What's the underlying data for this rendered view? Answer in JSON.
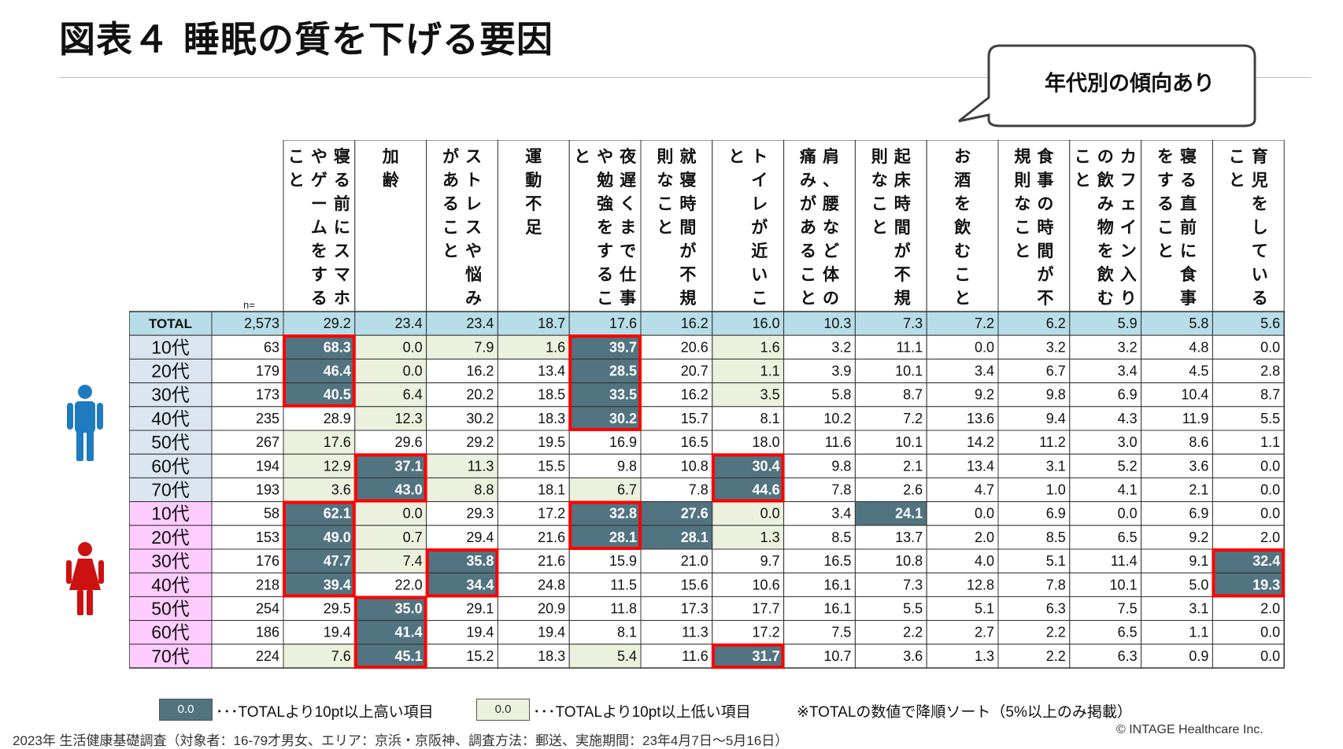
{
  "title": "図表４ 睡眠の質を下げる要因",
  "callout": "年代別の傾向あり",
  "colors": {
    "high_fill": "#527380",
    "low_fill": "#ebf1dd",
    "total_row": "#b7dde8",
    "male_label": "#dce6f1",
    "female_label": "#ffccff",
    "highlight_border": "#ff0000",
    "male_icon": "#1f7bbf",
    "female_icon": "#cc1111"
  },
  "legend": {
    "high_sample": "0.0",
    "high_text": "･･･TOTALより10pt以上高い項目",
    "low_sample": "0.0",
    "low_text": "･･･TOTALより10pt以上低い項目",
    "sort_note": "※TOTALの数値で降順ソート（5%以上のみ掲載）"
  },
  "source": "2023年 生活健康基礎調査（対象者：16-79才男女、エリア：京浜・京阪神、調査方法：郵送、実施期間：23年4月7日～5月16日）",
  "copyright": "© INTAGE Healthcare Inc.",
  "chart_data": {
    "type": "table",
    "n_label": "n=",
    "columns": [
      "寝る前にスマホやゲームをすること",
      "加齢",
      "ストレスや悩みがあること",
      "運動不足",
      "夜遅くまで仕事や勉強をすること",
      "就寝時間が不規則なこと",
      "トイレが近いこと",
      "肩、腰など体の痛みがあること",
      "起床時間が不規則なこと",
      "お酒を飲むこと",
      "食事の時間が不規則なこと",
      "カフェイン入りの飲み物を飲むこと",
      "寝る直前に食事をすること",
      "育児をしていること"
    ],
    "header_lines": [
      [
        "寝る前にスマホ",
        "やゲームをする",
        "こと"
      ],
      [
        "加齢"
      ],
      [
        "ストレスや悩み",
        "があること"
      ],
      [
        "運動不足"
      ],
      [
        "夜遅くまで仕事",
        "や勉強をするこ",
        "と"
      ],
      [
        "就寝時間が不規",
        "則なこと"
      ],
      [
        "トイレが近いこ",
        "と"
      ],
      [
        "肩、腰など体の",
        "痛みがあること"
      ],
      [
        "起床時間が不規",
        "則なこと"
      ],
      [
        "お酒を飲むこと"
      ],
      [
        "食事の時間が不",
        "規則なこと"
      ],
      [
        "カフェイン入り",
        "の飲み物を飲む",
        "こと"
      ],
      [
        "寝る直前に食事",
        "をすること"
      ],
      [
        "育児をしている",
        "こと"
      ]
    ],
    "rows": [
      {
        "label": "TOTAL",
        "group": "total",
        "n": "2,573",
        "values": [
          "29.2",
          "23.4",
          "23.4",
          "18.7",
          "17.6",
          "16.2",
          "16.0",
          "10.3",
          "7.3",
          "7.2",
          "6.2",
          "5.9",
          "5.8",
          "5.6"
        ],
        "flags": "--------------"
      },
      {
        "label": "10代",
        "group": "male",
        "n": "63",
        "values": [
          "68.3",
          "0.0",
          "7.9",
          "1.6",
          "39.7",
          "20.6",
          "1.6",
          "3.2",
          "11.1",
          "0.0",
          "3.2",
          "3.2",
          "4.8",
          "0.0"
        ],
        "flags": "HLLLH-L-------"
      },
      {
        "label": "20代",
        "group": "male",
        "n": "179",
        "values": [
          "46.4",
          "0.0",
          "16.2",
          "13.4",
          "28.5",
          "20.7",
          "1.1",
          "3.9",
          "10.1",
          "3.4",
          "6.7",
          "3.4",
          "4.5",
          "2.8"
        ],
        "flags": "HL--H-L-------"
      },
      {
        "label": "30代",
        "group": "male",
        "n": "173",
        "values": [
          "40.5",
          "6.4",
          "20.2",
          "18.5",
          "33.5",
          "16.2",
          "3.5",
          "5.8",
          "8.7",
          "9.2",
          "9.8",
          "6.9",
          "10.4",
          "8.7"
        ],
        "flags": "HL--H-L-------"
      },
      {
        "label": "40代",
        "group": "male",
        "n": "235",
        "values": [
          "28.9",
          "12.3",
          "30.2",
          "18.3",
          "30.2",
          "15.7",
          "8.1",
          "10.2",
          "7.2",
          "13.6",
          "9.4",
          "4.3",
          "11.9",
          "5.5"
        ],
        "flags": "-L--H---------"
      },
      {
        "label": "50代",
        "group": "male",
        "n": "267",
        "values": [
          "17.6",
          "29.6",
          "29.2",
          "19.5",
          "16.9",
          "16.5",
          "18.0",
          "11.6",
          "10.1",
          "14.2",
          "11.2",
          "3.0",
          "8.6",
          "1.1"
        ],
        "flags": "L-------------"
      },
      {
        "label": "60代",
        "group": "male",
        "n": "194",
        "values": [
          "12.9",
          "37.1",
          "11.3",
          "15.5",
          "9.8",
          "10.8",
          "30.4",
          "9.8",
          "2.1",
          "13.4",
          "3.1",
          "5.2",
          "3.6",
          "0.0"
        ],
        "flags": "LHL---H-------"
      },
      {
        "label": "70代",
        "group": "male",
        "n": "193",
        "values": [
          "3.6",
          "43.0",
          "8.8",
          "18.1",
          "6.7",
          "7.8",
          "44.6",
          "7.8",
          "2.6",
          "4.7",
          "1.0",
          "4.1",
          "2.1",
          "0.0"
        ],
        "flags": "LHL-L-H-------"
      },
      {
        "label": "10代",
        "group": "female",
        "n": "58",
        "values": [
          "62.1",
          "0.0",
          "29.3",
          "17.2",
          "32.8",
          "27.6",
          "0.0",
          "3.4",
          "24.1",
          "0.0",
          "6.9",
          "0.0",
          "6.9",
          "0.0"
        ],
        "flags": "HL--HHL-H-----"
      },
      {
        "label": "20代",
        "group": "female",
        "n": "153",
        "values": [
          "49.0",
          "0.7",
          "29.4",
          "21.6",
          "28.1",
          "28.1",
          "1.3",
          "8.5",
          "13.7",
          "2.0",
          "8.5",
          "6.5",
          "9.2",
          "2.0"
        ],
        "flags": "HL--HHL-------"
      },
      {
        "label": "30代",
        "group": "female",
        "n": "176",
        "values": [
          "47.7",
          "7.4",
          "35.8",
          "21.6",
          "15.9",
          "21.0",
          "9.7",
          "16.5",
          "10.8",
          "4.0",
          "5.1",
          "11.4",
          "9.1",
          "32.4"
        ],
        "flags": "HLH----------H"
      },
      {
        "label": "40代",
        "group": "female",
        "n": "218",
        "values": [
          "39.4",
          "22.0",
          "34.4",
          "24.8",
          "11.5",
          "15.6",
          "10.6",
          "16.1",
          "7.3",
          "12.8",
          "7.8",
          "10.1",
          "5.0",
          "19.3"
        ],
        "flags": "H-H----------H"
      },
      {
        "label": "50代",
        "group": "female",
        "n": "254",
        "values": [
          "29.5",
          "35.0",
          "29.1",
          "20.9",
          "11.8",
          "17.3",
          "17.7",
          "16.1",
          "5.5",
          "5.1",
          "6.3",
          "7.5",
          "3.1",
          "2.0"
        ],
        "flags": "-H------------"
      },
      {
        "label": "60代",
        "group": "female",
        "n": "186",
        "values": [
          "19.4",
          "41.4",
          "19.4",
          "19.4",
          "8.1",
          "11.3",
          "17.2",
          "7.5",
          "2.2",
          "2.7",
          "2.2",
          "6.5",
          "1.1",
          "0.0"
        ],
        "flags": "-H------------"
      },
      {
        "label": "70代",
        "group": "female",
        "n": "224",
        "values": [
          "7.6",
          "45.1",
          "15.2",
          "18.3",
          "5.4",
          "11.6",
          "31.7",
          "10.7",
          "3.6",
          "1.3",
          "2.2",
          "6.3",
          "0.9",
          "0.0"
        ],
        "flags": "LH--L-H-------"
      }
    ],
    "highlight_boxes": [
      {
        "col": 0,
        "from_row": 1,
        "to_row": 3
      },
      {
        "col": 4,
        "from_row": 1,
        "to_row": 4
      },
      {
        "col": 1,
        "from_row": 6,
        "to_row": 7
      },
      {
        "col": 6,
        "from_row": 6,
        "to_row": 7
      },
      {
        "col": 0,
        "from_row": 8,
        "to_row": 11
      },
      {
        "col": 4,
        "from_row": 8,
        "to_row": 9
      },
      {
        "col": 2,
        "from_row": 10,
        "to_row": 11
      },
      {
        "col": 13,
        "from_row": 10,
        "to_row": 11
      },
      {
        "col": 1,
        "from_row": 12,
        "to_row": 14
      },
      {
        "col": 6,
        "from_row": 14,
        "to_row": 14
      }
    ]
  }
}
